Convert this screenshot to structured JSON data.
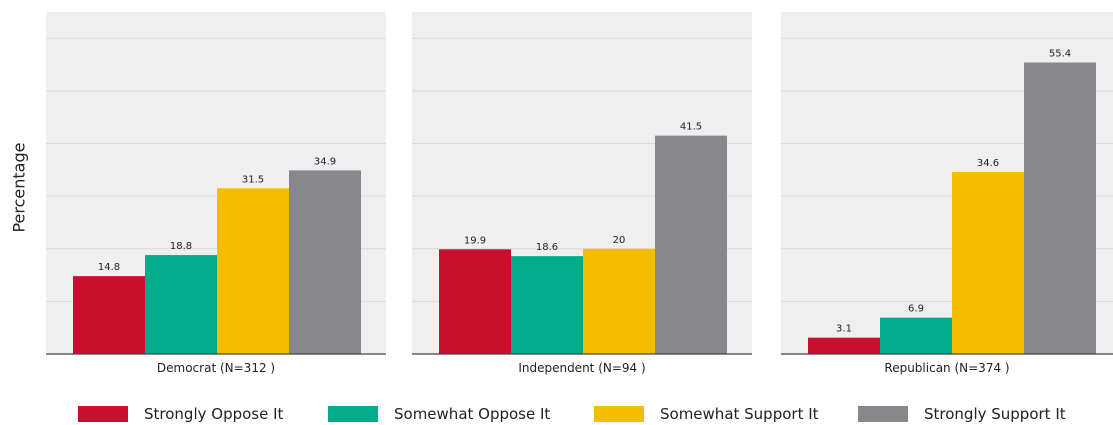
{
  "chart_data": {
    "type": "bar",
    "ylabel": "Percentage",
    "ylim": [
      0,
      65
    ],
    "grid": true,
    "legend_position": "bottom",
    "series_names": [
      "Strongly Oppose It",
      "Somewhat Oppose It",
      "Somewhat Support It",
      "Strongly Support It"
    ],
    "colors": [
      "#c8102e",
      "#00ac8c",
      "#f4bd00",
      "#87878c"
    ],
    "panels": [
      {
        "label": "Democrat (N=312 )",
        "values": [
          14.8,
          18.8,
          31.5,
          34.9
        ],
        "value_labels": [
          "14.8",
          "18.8",
          "31.5",
          "34.9"
        ]
      },
      {
        "label": "Independent (N=94 )",
        "values": [
          19.9,
          18.6,
          20,
          41.5
        ],
        "value_labels": [
          "19.9",
          "18.6",
          "20",
          "41.5"
        ]
      },
      {
        "label": "Republican (N=374 )",
        "values": [
          3.1,
          6.9,
          34.6,
          55.4
        ],
        "value_labels": [
          "3.1",
          "6.9",
          "34.6",
          "55.4"
        ]
      }
    ]
  }
}
